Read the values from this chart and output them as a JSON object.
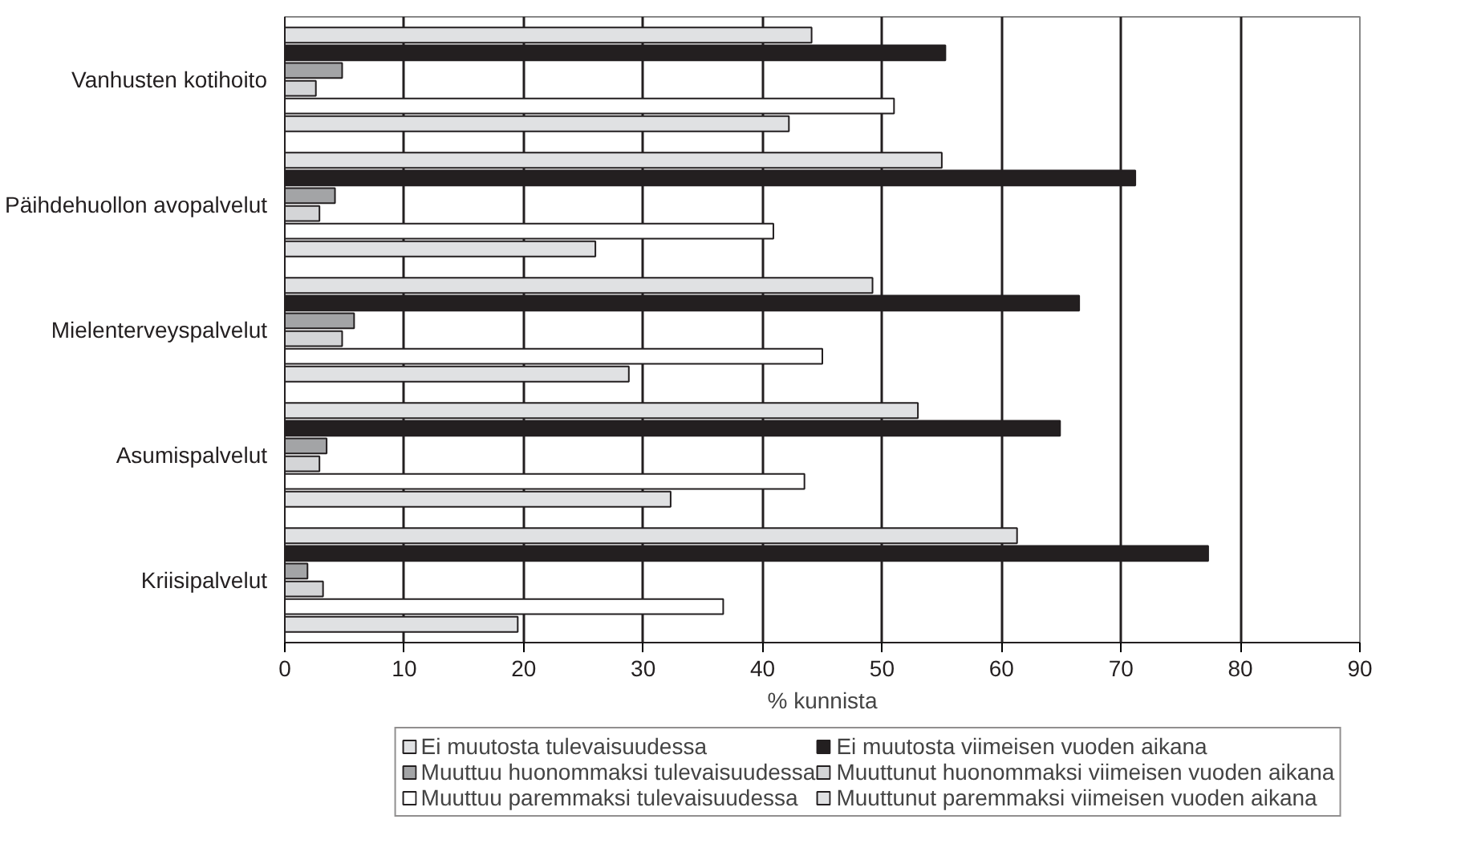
{
  "chart_data": {
    "type": "bar",
    "orientation": "horizontal",
    "xlabel": "% kunnista",
    "categories": [
      "Vanhusten kotihoito",
      "Päihdehuollon avopalvelut",
      "Mielenterveyspalvelut",
      "Asumispalvelut",
      "Kriisipalvelut"
    ],
    "series": [
      {
        "name": "Ei muutosta tulevaisuudessa",
        "color": "#e0e1e3",
        "values": [
          44.1,
          55.0,
          49.2,
          53.0,
          61.3
        ]
      },
      {
        "name": "Ei muutosta viimeisen vuoden aikana",
        "color": "#231f20",
        "values": [
          55.3,
          71.2,
          66.5,
          64.9,
          77.3
        ]
      },
      {
        "name": "Muuttuu huonommaksi tulevaisuudessa",
        "color": "#a3a4a6",
        "values": [
          4.8,
          4.2,
          5.8,
          3.5,
          1.9
        ]
      },
      {
        "name": "Muuttunut huonommaksi viimeisen vuoden aikana",
        "color": "#d4d5d7",
        "values": [
          2.6,
          2.9,
          4.8,
          2.9,
          3.2
        ]
      },
      {
        "name": "Muuttuu paremmaksi tulevaisuudessa",
        "color": "#ffffff",
        "values": [
          51.0,
          40.9,
          45.0,
          43.5,
          36.7
        ]
      },
      {
        "name": "Muuttunut paremmaksi viimeisen vuoden aikana",
        "color": "#e0e1e3",
        "values": [
          42.2,
          26.0,
          28.8,
          32.3,
          19.5
        ]
      }
    ],
    "xlim": [
      0,
      90
    ],
    "xticks": [
      0,
      10,
      20,
      30,
      40,
      50,
      60,
      70,
      80,
      90
    ],
    "grid": "x",
    "legend": "bottom"
  }
}
